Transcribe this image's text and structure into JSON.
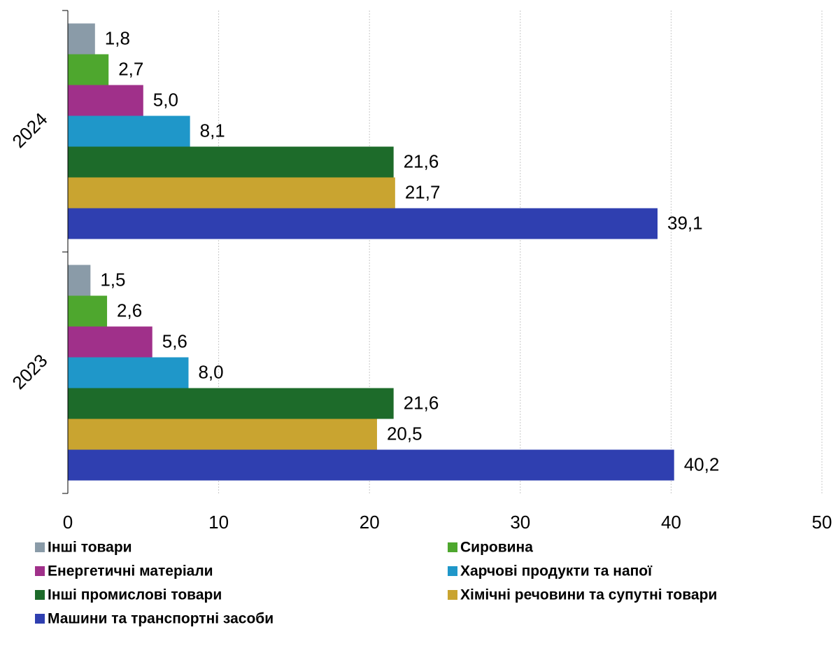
{
  "chart_data": {
    "type": "bar",
    "orientation": "horizontal",
    "categories": [
      "2024",
      "2023"
    ],
    "series": [
      {
        "name": "Інші товари",
        "color": "#8a9ba8",
        "values": [
          1.8,
          1.5
        ],
        "value_labels": [
          "1,8",
          "1,5"
        ]
      },
      {
        "name": "Сировина",
        "color": "#4ea72e",
        "values": [
          2.7,
          2.6
        ],
        "value_labels": [
          "2,7",
          "2,6"
        ]
      },
      {
        "name": "Енергетичні матеріали",
        "color": "#a0308a",
        "values": [
          5.0,
          5.6
        ],
        "value_labels": [
          "5,0",
          "5,6"
        ]
      },
      {
        "name": "Харчові продукти та напої",
        "color": "#1f97c9",
        "values": [
          8.1,
          8.0
        ],
        "value_labels": [
          "8,1",
          "8,0"
        ]
      },
      {
        "name": "Інші промислові товари",
        "color": "#1d6b2a",
        "values": [
          21.6,
          21.6
        ],
        "value_labels": [
          "21,6",
          "21,6"
        ]
      },
      {
        "name": "Хімічні речовини та супутні товари",
        "color": "#c9a430",
        "values": [
          21.7,
          20.5
        ],
        "value_labels": [
          "21,7",
          "20,5"
        ]
      },
      {
        "name": "Машини та транспортні засоби",
        "color": "#2f3fb0",
        "values": [
          39.1,
          40.2
        ],
        "value_labels": [
          "39,1",
          "40,2"
        ]
      }
    ],
    "xlim": [
      0,
      50
    ],
    "xticks": [
      0,
      10,
      20,
      30,
      40,
      50
    ],
    "grid": true
  }
}
